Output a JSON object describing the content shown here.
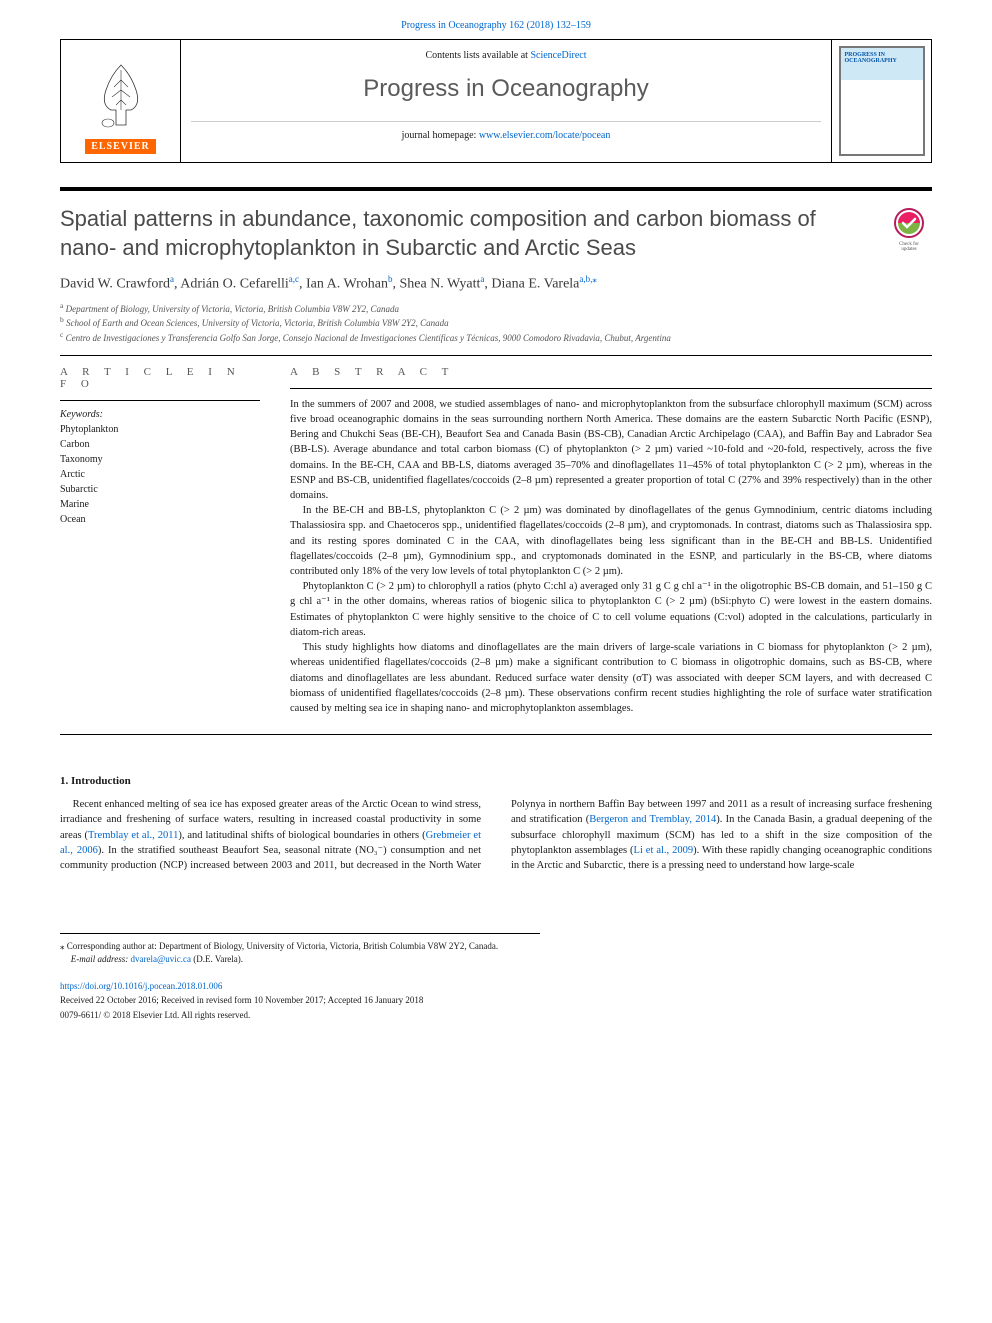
{
  "header": {
    "top_citation": "Progress in Oceanography 162 (2018) 132–159",
    "contents_prefix": "Contents lists available at ",
    "contents_link": "ScienceDirect",
    "journal_name": "Progress in Oceanography",
    "homepage_prefix": "journal homepage: ",
    "homepage_url": "www.elsevier.com/locate/pocean",
    "publisher": "ELSEVIER",
    "cover_text": "PROGRESS IN OCEANOGRAPHY"
  },
  "article": {
    "title": "Spatial patterns in abundance, taxonomic composition and carbon biomass of nano- and microphytoplankton in Subarctic and Arctic Seas",
    "check_label": "Check for updates",
    "authors_html": "David W. Crawford<sup>a</sup>, Adrián O. Cefarelli<sup>a,c</sup>, Ian A. Wrohan<sup>b</sup>, Shea N. Wyatt<sup>a</sup>, Diana E. Varela<sup>a,b,</sup>",
    "corr_mark": "⁎",
    "affiliations": [
      {
        "sup": "a",
        "text": "Department of Biology, University of Victoria, Victoria, British Columbia V8W 2Y2, Canada"
      },
      {
        "sup": "b",
        "text": "School of Earth and Ocean Sciences, University of Victoria, Victoria, British Columbia V8W 2Y2, Canada"
      },
      {
        "sup": "c",
        "text": "Centro de Investigaciones y Transferencia Golfo San Jorge, Consejo Nacional de Investigaciones Científicas y Técnicas, 9000 Comodoro Rivadavia, Chubut, Argentina"
      }
    ]
  },
  "info": {
    "heading": "A R T I C L E  I N F O",
    "keywords_label": "Keywords:",
    "keywords": [
      "Phytoplankton",
      "Carbon",
      "Taxonomy",
      "Arctic",
      "Subarctic",
      "Marine",
      "Ocean"
    ]
  },
  "abstract": {
    "heading": "A B S T R A C T",
    "paragraphs": [
      "In the summers of 2007 and 2008, we studied assemblages of nano- and microphytoplankton from the subsurface chlorophyll maximum (SCM) across five broad oceanographic domains in the seas surrounding northern North America. These domains are the eastern Subarctic North Pacific (ESNP), Bering and Chukchi Seas (BE-CH), Beaufort Sea and Canada Basin (BS-CB), Canadian Arctic Archipelago (CAA), and Baffin Bay and Labrador Sea (BB-LS). Average abundance and total carbon biomass (C) of phytoplankton (> 2 µm) varied ~10-fold and ~20-fold, respectively, across the five domains. In the BE-CH, CAA and BB-LS, diatoms averaged 35–70% and dinoflagellates 11–45% of total phytoplankton C (> 2 µm), whereas in the ESNP and BS-CB, unidentified flagellates/coccoids (2–8 µm) represented a greater proportion of total C (27% and 39% respectively) than in the other domains.",
      "In the BE-CH and BB-LS, phytoplankton C (> 2 µm) was dominated by dinoflagellates of the genus Gymnodinium, centric diatoms including Thalassiosira spp. and Chaetoceros spp., unidentified flagellates/coccoids (2–8 µm), and cryptomonads. In contrast, diatoms such as Thalassiosira spp. and its resting spores dominated C in the CAA, with dinoflagellates being less significant than in the BE-CH and BB-LS. Unidentified flagellates/coccoids (2–8 µm), Gymnodinium spp., and cryptomonads dominated in the ESNP, and particularly in the BS-CB, where diatoms contributed only 18% of the very low levels of total phytoplankton C (> 2 µm).",
      "Phytoplankton C (> 2 µm) to chlorophyll a ratios (phyto C:chl a) averaged only 31 g C g chl a⁻¹ in the oligotrophic BS-CB domain, and 51–150 g C g chl a⁻¹ in the other domains, whereas ratios of biogenic silica to phytoplankton C (> 2 µm) (bSi:phyto C) were lowest in the eastern domains. Estimates of phytoplankton C were highly sensitive to the choice of C to cell volume equations (C:vol) adopted in the calculations, particularly in diatom-rich areas.",
      "This study highlights how diatoms and dinoflagellates are the main drivers of large-scale variations in C biomass for phytoplankton (> 2 µm), whereas unidentified flagellates/coccoids (2–8 µm) make a significant contribution to C biomass in oligotrophic domains, such as BS-CB, where diatoms and dinoflagellates are less abundant. Reduced surface water density (σT) was associated with deeper SCM layers, and with decreased C biomass of unidentified flagellates/coccoids (2–8 µm). These observations confirm recent studies highlighting the role of surface water stratification caused by melting sea ice in shaping nano- and microphytoplankton assemblages."
    ]
  },
  "intro": {
    "heading": "1. Introduction",
    "text_parts": [
      {
        "type": "text",
        "value": "Recent enhanced melting of sea ice has exposed greater areas of the Arctic Ocean to wind stress, irradiance and freshening of surface waters, resulting in increased coastal productivity in some areas ("
      },
      {
        "type": "link",
        "value": "Tremblay et al., 2011"
      },
      {
        "type": "text",
        "value": "), and latitudinal shifts of biological boundaries in others ("
      },
      {
        "type": "link",
        "value": "Grebmeier et al., 2006"
      },
      {
        "type": "text",
        "value": "). In the stratified southeast Beaufort Sea, seasonal nitrate (NO₃⁻) consumption and net community production (NCP) increased between 2003 and 2011, but decreased in the North Water Polynya in northern Baffin Bay between 1997 and 2011 as a result of increasing surface freshening and stratification ("
      },
      {
        "type": "link",
        "value": "Bergeron and Tremblay, 2014"
      },
      {
        "type": "text",
        "value": "). In the Canada Basin, a gradual deepening of the subsurface chlorophyll maximum (SCM) has led to a shift in the size composition of the phytoplankton assemblages ("
      },
      {
        "type": "link",
        "value": "Li et al., 2009"
      },
      {
        "type": "text",
        "value": "). With these rapidly changing oceanographic conditions in the Arctic and Subarctic, there is a pressing need to understand how large-scale"
      }
    ]
  },
  "footer": {
    "corr_mark": "⁎",
    "corr_text": " Corresponding author at: Department of Biology, University of Victoria, Victoria, British Columbia V8W 2Y2, Canada.",
    "email_label": "E-mail address: ",
    "email": "dvarela@uvic.ca",
    "email_suffix": " (D.E. Varela).",
    "doi": "https://doi.org/10.1016/j.pocean.2018.01.006",
    "received": "Received 22 October 2016; Received in revised form 10 November 2017; Accepted 16 January 2018",
    "copyright": "0079-6611/ © 2018 Elsevier Ltd. All rights reserved."
  },
  "colors": {
    "link": "#0066cc",
    "elsevier_orange": "#ff6600",
    "title_gray": "#4a4a4a",
    "journal_gray": "#5a5a5a",
    "text": "#1a1a1a"
  },
  "typography": {
    "body_fontsize": 12,
    "title_fontsize": 22,
    "journal_fontsize": 24,
    "abstract_fontsize": 10.5,
    "small_fontsize": 9
  }
}
